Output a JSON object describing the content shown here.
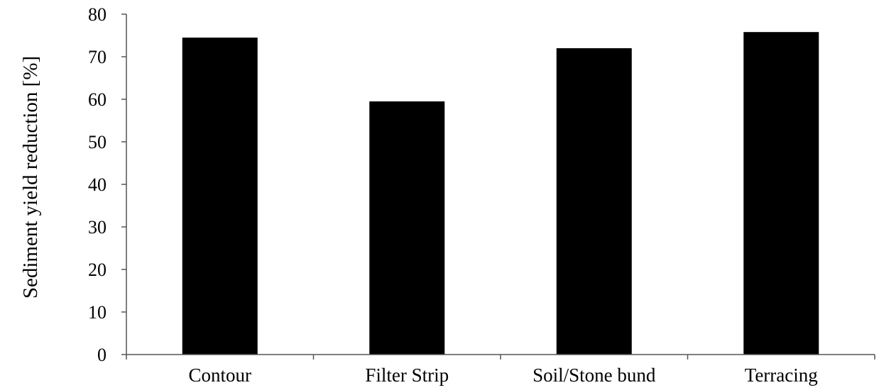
{
  "chart_data": {
    "type": "bar",
    "title": "",
    "xlabel": "",
    "ylabel": "Sediment yield reduction [%]",
    "categories": [
      "Contour",
      "Filter Strip",
      "Soil/Stone bund",
      "Terracing"
    ],
    "values": [
      74.5,
      59.5,
      72.0,
      75.8
    ],
    "ylim": [
      0,
      80
    ],
    "yticks": [
      0,
      10,
      20,
      30,
      40,
      50,
      60,
      70,
      80
    ],
    "grid": false,
    "legend": "none",
    "bar_color": "#000000",
    "axis_color": "#555555"
  }
}
